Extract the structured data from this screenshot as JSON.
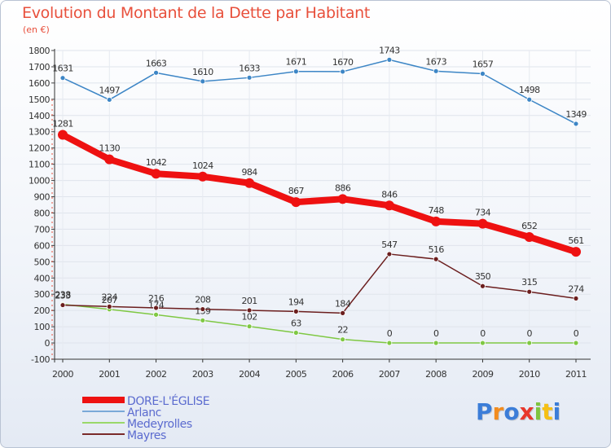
{
  "chart_data": {
    "type": "line",
    "title": "Evolution du Montant de la Dette par Habitant",
    "subtitle": "(en €)",
    "categories": [
      "2000",
      "2001",
      "2002",
      "2003",
      "2004",
      "2005",
      "2006",
      "2007",
      "2008",
      "2009",
      "2010",
      "2011"
    ],
    "ylim": [
      -100,
      1800
    ],
    "yticks": [
      -100,
      0,
      100,
      200,
      300,
      400,
      500,
      600,
      700,
      800,
      900,
      1000,
      1100,
      1200,
      1300,
      1400,
      1500,
      1600,
      1700,
      1800
    ],
    "legend_position": "bottom-left",
    "series": [
      {
        "name": "Arlanc",
        "color": "#3d86c6",
        "values": [
          1631,
          1497,
          1663,
          1610,
          1633,
          1671,
          1670,
          1743,
          1673,
          1657,
          1498,
          1349
        ]
      },
      {
        "name": "Medeyrolles",
        "color": "#7fc843",
        "values": [
          238,
          207,
          174,
          139,
          102,
          63,
          22,
          0,
          0,
          0,
          0,
          0
        ]
      },
      {
        "name": "Mayres",
        "color": "#6b1e1e",
        "values": [
          233,
          224,
          216,
          208,
          201,
          194,
          184,
          547,
          516,
          350,
          315,
          274
        ]
      },
      {
        "name": "DORE-L'ÉGLISE",
        "color": "#ee1111",
        "values": [
          1281,
          1130,
          1042,
          1024,
          984,
          867,
          886,
          846,
          748,
          734,
          652,
          561
        ]
      }
    ]
  },
  "legend": [
    {
      "label": "DORE-L'ÉGLISE",
      "color": "#ee1111"
    },
    {
      "label": "Arlanc",
      "color": "#7aa9d8"
    },
    {
      "label": "Medeyrolles",
      "color": "#9ad86a"
    },
    {
      "label": "Mayres",
      "color": "#7a2a2a"
    }
  ],
  "logo": {
    "letters": [
      "P",
      "r",
      "o",
      "x",
      "i",
      "t",
      "i"
    ],
    "colors": [
      "#3b7dd8",
      "#f28c1e",
      "#3b7dd8",
      "#e8372c",
      "#7fc43f",
      "#f5c016",
      "#3b7dd8"
    ]
  }
}
